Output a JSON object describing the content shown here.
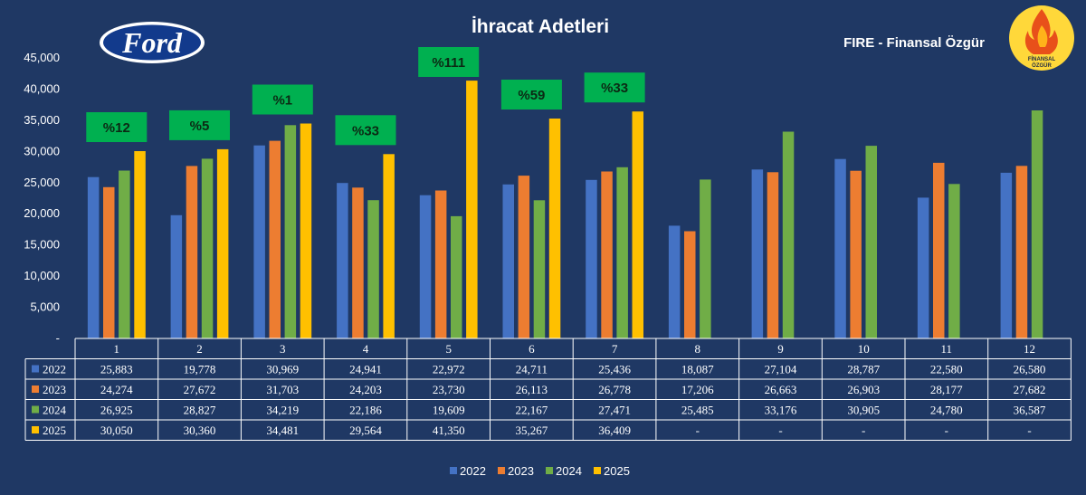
{
  "page": {
    "title": "İhracat Adetleri",
    "brand_label": "FIRE - Finansal Özgür",
    "ford_logo_text": "Ford",
    "fire_logo_text": [
      "FİNANSAL",
      "ÖZGÜR"
    ]
  },
  "colors": {
    "background": "#1f3864",
    "2022": "#4472c4",
    "2023": "#ed7d31",
    "2024": "#70ad47",
    "2025": "#ffc000",
    "badge": "#00b050",
    "grid_table": "#ffffff"
  },
  "chart_data": {
    "type": "bar",
    "title": "İhracat Adetleri",
    "categories": [
      "1",
      "2",
      "3",
      "4",
      "5",
      "6",
      "7",
      "8",
      "9",
      "10",
      "11",
      "12"
    ],
    "ylim": [
      0,
      45000
    ],
    "yticks": [
      "-",
      "5,000",
      "10,000",
      "15,000",
      "20,000",
      "25,000",
      "30,000",
      "35,000",
      "40,000",
      "45,000"
    ],
    "series": [
      {
        "name": "2022",
        "values": [
          25883,
          19778,
          30969,
          24941,
          22972,
          24711,
          25436,
          18087,
          27104,
          28787,
          22580,
          26580
        ],
        "labels": [
          "25,883",
          "19,778",
          "30,969",
          "24,941",
          "22,972",
          "24,711",
          "25,436",
          "18,087",
          "27,104",
          "28,787",
          "22,580",
          "26,580"
        ]
      },
      {
        "name": "2023",
        "values": [
          24274,
          27672,
          31703,
          24203,
          23730,
          26113,
          26778,
          17206,
          26663,
          26903,
          28177,
          27682
        ],
        "labels": [
          "24,274",
          "27,672",
          "31,703",
          "24,203",
          "23,730",
          "26,113",
          "26,778",
          "17,206",
          "26,663",
          "26,903",
          "28,177",
          "27,682"
        ]
      },
      {
        "name": "2024",
        "values": [
          26925,
          28827,
          34219,
          22186,
          19609,
          22167,
          27471,
          25485,
          33176,
          30905,
          24780,
          36587
        ],
        "labels": [
          "26,925",
          "28,827",
          "34,219",
          "22,186",
          "19,609",
          "22,167",
          "27,471",
          "25,485",
          "33,176",
          "30,905",
          "24,780",
          "36,587"
        ]
      },
      {
        "name": "2025",
        "values": [
          30050,
          30360,
          34481,
          29564,
          41350,
          35267,
          36409,
          null,
          null,
          null,
          null,
          null
        ],
        "labels": [
          "30,050",
          "30,360",
          "34,481",
          "29,564",
          "41,350",
          "35,267",
          "36,409",
          "-",
          "-",
          "-",
          "-",
          "-"
        ]
      }
    ],
    "annotations": [
      "%12",
      "%5",
      "%1",
      "%33",
      "%111",
      "%59",
      "%33"
    ],
    "legend": [
      "2022",
      "2023",
      "2024",
      "2025"
    ],
    "legend_position": "bottom",
    "grid": false
  }
}
